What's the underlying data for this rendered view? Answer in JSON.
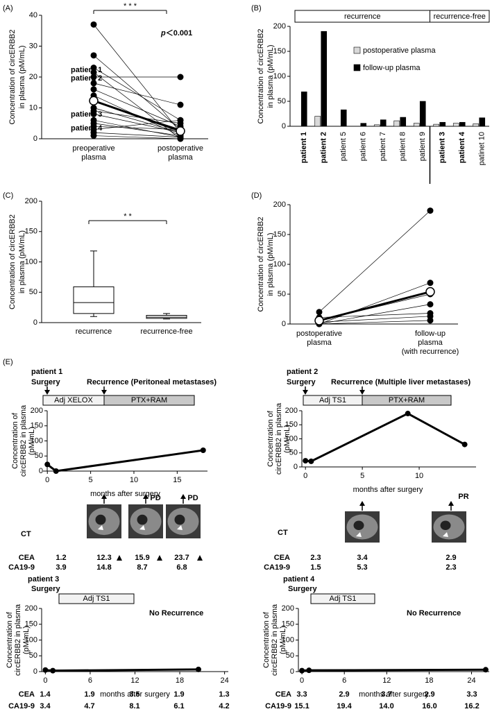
{
  "chart_data": [
    {
      "type": "paired",
      "panel": "(A)",
      "ylabel": [
        "Concentration of circERBB2",
        "in plasma (pM/mL)"
      ],
      "categories": [
        [
          "preoperative",
          "plasma"
        ],
        [
          "postoperative",
          "plasma"
        ]
      ],
      "ylim": [
        0,
        40
      ],
      "yticks": [
        0,
        10,
        20,
        30,
        40
      ],
      "before": [
        37,
        27,
        23,
        21.5,
        20,
        18,
        16,
        14,
        12,
        10,
        9,
        8,
        6,
        5,
        4,
        3,
        2,
        1
      ],
      "after": [
        2,
        3,
        6,
        0,
        20,
        11,
        4,
        1,
        3,
        2,
        5,
        2,
        0.5,
        1,
        3,
        6,
        0.5,
        0
      ],
      "mean": [
        12.3,
        2.5
      ],
      "significance": "* * *",
      "p_label": {
        "italic": "p",
        "rest": "＜0.001"
      },
      "patient_labels": [
        "patient 1",
        "patient 2",
        "patient 3",
        "patient 4"
      ]
    },
    {
      "type": "bar",
      "panel": "(B)",
      "ylabel": [
        "Concentration of circERBB2",
        "in plasma (pM/mL)"
      ],
      "groups": [
        "recurrence",
        "recurrence-free"
      ],
      "categories": [
        "patient 1",
        "patient 2",
        "patient 5",
        "patient 6",
        "patient 7",
        "patient 8",
        "patient 9",
        "patient 3",
        "patient 4",
        "patinet 10"
      ],
      "bold": [
        true,
        true,
        false,
        false,
        false,
        false,
        false,
        true,
        true,
        false
      ],
      "series": [
        {
          "name": "postoperative plasma",
          "color": "#d9d9d9",
          "values": [
            0,
            20,
            0,
            0,
            3,
            11,
            6,
            4,
            6,
            5
          ]
        },
        {
          "name": "follow-up plasma",
          "color": "#000000",
          "values": [
            69,
            190,
            33,
            6,
            13,
            18,
            50,
            8,
            8,
            17
          ]
        }
      ],
      "ylim": [
        0,
        200
      ],
      "yticks": [
        0,
        50,
        100,
        150,
        200
      ]
    },
    {
      "type": "box",
      "panel": "(C)",
      "ylabel": [
        "Concentration of circERBB2",
        "in plasma (pM/mL)"
      ],
      "categories": [
        "recurrence",
        "recurrence-free"
      ],
      "boxes": [
        {
          "low": 10,
          "q1": 15,
          "median": 33,
          "q3": 59,
          "high": 118
        },
        {
          "low": 6,
          "q1": 7,
          "median": 9,
          "q3": 12,
          "high": 15
        }
      ],
      "significance": "* *",
      "ylim": [
        0,
        200
      ],
      "yticks": [
        0,
        50,
        100,
        150,
        200
      ]
    },
    {
      "type": "paired",
      "panel": "(D)",
      "ylabel": [
        "Concentration of circERBB2",
        "in plasma (pM/mL)"
      ],
      "categories": [
        [
          "postoperative",
          "plasma"
        ],
        [
          "follow-up",
          "plasma",
          "(with recurrence)"
        ]
      ],
      "ylim": [
        0,
        200
      ],
      "yticks": [
        0,
        50,
        100,
        150,
        200
      ],
      "before": [
        0,
        20,
        0,
        0,
        3,
        11,
        6
      ],
      "after": [
        69,
        190,
        33,
        6,
        13,
        18,
        50
      ],
      "mean": [
        5.7,
        54
      ]
    },
    {
      "type": "timeline",
      "panel": "(E)",
      "title": "patient 1",
      "surgery": "Surgery",
      "event": "Recurrence (Peritoneal metastases)",
      "therapies": [
        "Adj XELOX",
        "PTX+RAM"
      ],
      "ylabel": [
        "Concentration of",
        "circERBB2  in plasma",
        "(pM/mL)"
      ],
      "xlabel": "months after surgery",
      "x": [
        0,
        1,
        18
      ],
      "values": [
        22,
        0,
        69
      ],
      "xlim": [
        -0.5,
        18.5
      ],
      "xticks": [
        0,
        5,
        10,
        15
      ],
      "ylim": [
        0,
        200
      ],
      "yticks": [
        0,
        50,
        100,
        150,
        200
      ],
      "ct_label": "CT",
      "responses": [
        "PD",
        "PD"
      ],
      "markers": [
        {
          "name": "CEA",
          "values": [
            "1.2",
            "12.3",
            "15.9",
            "23.7"
          ]
        },
        {
          "name": "CA19-9",
          "values": [
            "3.9",
            "14.8",
            "8.7",
            "6.8"
          ]
        }
      ]
    },
    {
      "type": "timeline",
      "title": "patient 2",
      "surgery": "Surgery",
      "event": "Recurrence (Multiple liver metastases)",
      "therapies": [
        "Adj TS1",
        "PTX+RAM"
      ],
      "ylabel": [
        "Concentration of",
        "circERBB2  in plasma",
        "(pM/mL)"
      ],
      "xlabel": "months after surgery",
      "x": [
        0,
        0.5,
        9,
        14
      ],
      "values": [
        22,
        20,
        190,
        80
      ],
      "xlim": [
        -0.5,
        15
      ],
      "xticks": [
        0,
        5,
        10
      ],
      "ylim": [
        0,
        200
      ],
      "yticks": [
        0,
        50,
        100,
        150,
        200
      ],
      "ct_label": "CT",
      "responses": [
        "PR"
      ],
      "markers": [
        {
          "name": "CEA",
          "values": [
            "2.3",
            "3.4",
            "2.9"
          ]
        },
        {
          "name": "CA19-9",
          "values": [
            "1.5",
            "5.3",
            "2.3"
          ]
        }
      ]
    },
    {
      "type": "timeline",
      "title": "patient 3",
      "surgery": "Surgery",
      "event": "No Recurrence",
      "therapies": [
        "Adj TS1"
      ],
      "ylabel": [
        "Concentration of",
        "circERBB2  in plasma",
        "(pM/mL)"
      ],
      "xlabel": "months after surgery",
      "x": [
        0,
        1,
        20.5
      ],
      "values": [
        5,
        3,
        7
      ],
      "xlim": [
        -0.5,
        24.5
      ],
      "xticks": [
        0,
        6,
        12,
        18,
        24
      ],
      "ylim": [
        0,
        200
      ],
      "yticks": [
        0,
        50,
        100,
        150,
        200
      ],
      "markers": [
        {
          "name": "CEA",
          "values": [
            "1.4",
            "1.9",
            "3.5",
            "1.9",
            "1.3"
          ]
        },
        {
          "name": "CA19-9",
          "values": [
            "3.4",
            "4.7",
            "8.1",
            "6.1",
            "4.2"
          ]
        }
      ]
    },
    {
      "type": "timeline",
      "title": "patient 4",
      "surgery": "Surgery",
      "event": "No Recurrence",
      "therapies": [
        "Adj TS1"
      ],
      "ylabel": [
        "Concentration of",
        "circERBB2  in plasma",
        "(pM/mL)"
      ],
      "xlabel": "months after surgery",
      "x": [
        0,
        1,
        26
      ],
      "values": [
        3,
        4,
        6
      ],
      "xlim": [
        -0.5,
        26.5
      ],
      "xticks": [
        0,
        6,
        12,
        18,
        24
      ],
      "ylim": [
        0,
        200
      ],
      "yticks": [
        0,
        50,
        100,
        150,
        200
      ],
      "markers": [
        {
          "name": "CEA",
          "values": [
            "3.3",
            "2.9",
            "3.7",
            "2.9",
            "3.3"
          ]
        },
        {
          "name": "CA19-9",
          "values": [
            "15.1",
            "19.4",
            "14.0",
            "16.0",
            "16.2"
          ]
        }
      ]
    }
  ]
}
